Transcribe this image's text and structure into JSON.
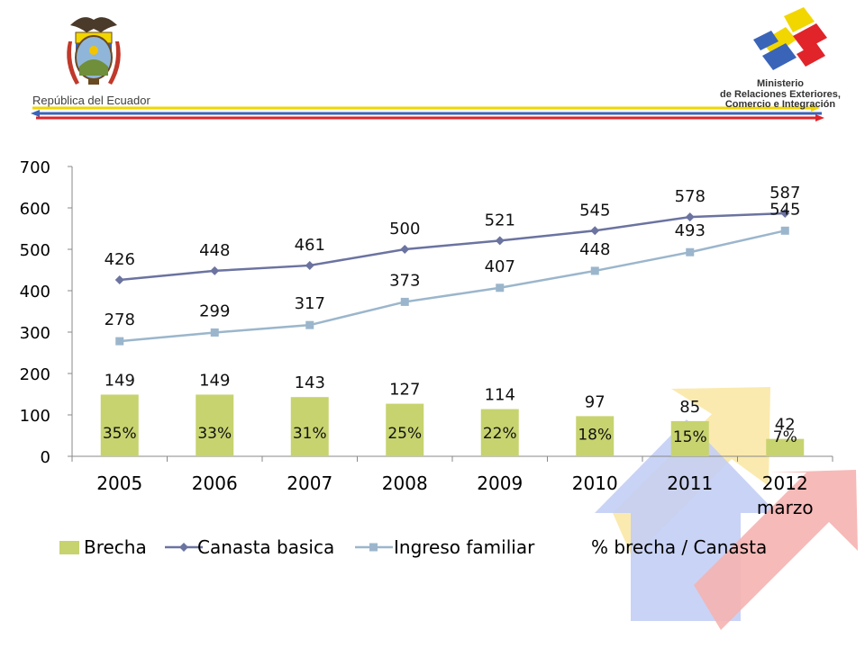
{
  "header": {
    "republic_label": "República del Ecuador",
    "ministry_lines": [
      "Ministerio",
      "de Relaciones Exteriores,",
      "Comercio e Integración"
    ]
  },
  "colors": {
    "bar": "#c7d36f",
    "canasta": "#6b73a0",
    "ingreso": "#9bb6cc",
    "stripe_yellow": "#f2d600",
    "stripe_blue": "#3a64b8",
    "stripe_red": "#e0242a"
  },
  "chart_data": {
    "type": "bar",
    "categories": [
      "2005",
      "2006",
      "2007",
      "2008",
      "2009",
      "2010",
      "2011",
      "2012\nmarzo"
    ],
    "ylim": [
      0,
      700
    ],
    "yticks": [
      0,
      100,
      200,
      300,
      400,
      500,
      600,
      700
    ],
    "grid": false,
    "legend_position": "bottom",
    "series": [
      {
        "name": "Brecha",
        "type": "bar",
        "values": [
          149,
          149,
          143,
          127,
          114,
          97,
          85,
          42
        ]
      },
      {
        "name": "Canasta basica",
        "type": "line",
        "marker": "diamond",
        "values": [
          426,
          448,
          461,
          500,
          521,
          545,
          578,
          587
        ]
      },
      {
        "name": "Ingreso familiar",
        "type": "line",
        "marker": "square",
        "values": [
          278,
          299,
          317,
          373,
          407,
          448,
          493,
          545
        ]
      },
      {
        "name": "% brecha / Canasta",
        "type": "text",
        "values": [
          "35%",
          "33%",
          "31%",
          "25%",
          "22%",
          "18%",
          "15%",
          "7%"
        ]
      }
    ]
  }
}
